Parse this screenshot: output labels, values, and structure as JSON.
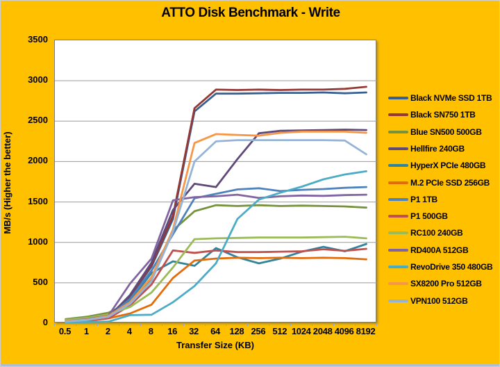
{
  "chart_data": {
    "type": "line",
    "title": "ATTO Disk Benchmark - Write",
    "xlabel": "Transfer Size (KB)",
    "ylabel": "MB/s (Higher the better)",
    "legend_position": "right",
    "grid": true,
    "background_color": "#FFC000",
    "plot_background_color": "#FFFFFF",
    "gridline_color": "#9a9a9a",
    "plot_border_color": "#7f7f7f",
    "axis_tick_color": "#8fa6c9",
    "text_color": "#000000",
    "ylim": [
      0,
      3500
    ],
    "ytick_step": 500,
    "ytick_labels": [
      "0",
      "500",
      "1000",
      "1500",
      "2000",
      "2500",
      "3000",
      "3500"
    ],
    "categories": [
      "0.5",
      "1",
      "2",
      "4",
      "8",
      "16",
      "32",
      "64",
      "128",
      "256",
      "512",
      "1024",
      "2048",
      "4096",
      "8192"
    ],
    "series": [
      {
        "name": "Black NVMe SSD 1TB",
        "color": "#376092",
        "values": [
          20,
          40,
          80,
          330,
          700,
          1290,
          2620,
          2840,
          2840,
          2845,
          2850,
          2850,
          2855,
          2845,
          2855
        ]
      },
      {
        "name": "Black SN750 1TB",
        "color": "#953734",
        "values": [
          25,
          45,
          85,
          340,
          720,
          1330,
          2660,
          2890,
          2885,
          2890,
          2885,
          2890,
          2890,
          2900,
          2925
        ]
      },
      {
        "name": "Blue SN500 500GB",
        "color": "#76923C",
        "values": [
          50,
          80,
          130,
          260,
          530,
          1150,
          1385,
          1460,
          1450,
          1460,
          1450,
          1455,
          1450,
          1445,
          1430
        ]
      },
      {
        "name": "Hellfire 240GB",
        "color": "#5F497A",
        "values": [
          20,
          40,
          75,
          350,
          750,
          1400,
          1725,
          1685,
          2030,
          2350,
          2380,
          2385,
          2390,
          2395,
          2390
        ]
      },
      {
        "name": "HyperX PCIe 480GB",
        "color": "#31849B",
        "values": [
          20,
          35,
          70,
          280,
          620,
          765,
          710,
          930,
          815,
          740,
          800,
          885,
          945,
          890,
          980
        ]
      },
      {
        "name": "M.2 PCIe SSD 256GB",
        "color": "#E36C09",
        "values": [
          15,
          30,
          60,
          120,
          230,
          560,
          775,
          800,
          810,
          805,
          810,
          805,
          810,
          805,
          790
        ]
      },
      {
        "name": "P1 1TB",
        "color": "#4F81BD",
        "values": [
          20,
          40,
          80,
          300,
          650,
          1100,
          1545,
          1600,
          1655,
          1670,
          1635,
          1650,
          1660,
          1675,
          1685
        ]
      },
      {
        "name": "P1 500GB",
        "color": "#C0504D",
        "values": [
          15,
          30,
          60,
          220,
          480,
          900,
          870,
          900,
          880,
          880,
          885,
          890,
          915,
          895,
          920
        ]
      },
      {
        "name": "RC100 240GB",
        "color": "#9BBB59",
        "values": [
          40,
          65,
          110,
          200,
          380,
          690,
          1040,
          1050,
          1055,
          1060,
          1060,
          1060,
          1065,
          1070,
          1050
        ]
      },
      {
        "name": "RD400A 512GB",
        "color": "#8064A2",
        "values": [
          25,
          50,
          95,
          490,
          800,
          1520,
          1560,
          1570,
          1590,
          1550,
          1570,
          1580,
          1575,
          1585,
          1590
        ]
      },
      {
        "name": "RevoDrive 350 480GB",
        "color": "#4BACC6",
        "values": [
          10,
          15,
          20,
          100,
          105,
          260,
          460,
          740,
          1290,
          1530,
          1615,
          1690,
          1780,
          1840,
          1880
        ]
      },
      {
        "name": "SX8200 Pro 512GB",
        "color": "#F79646",
        "values": [
          25,
          45,
          90,
          260,
          570,
          1160,
          2230,
          2340,
          2330,
          2320,
          2355,
          2370,
          2370,
          2370,
          2355
        ]
      },
      {
        "name": "VPN100 512GB",
        "color": "#95B3D7",
        "values": [
          20,
          40,
          80,
          240,
          520,
          1130,
          2000,
          2250,
          2265,
          2265,
          2265,
          2265,
          2265,
          2260,
          2090
        ]
      }
    ]
  }
}
